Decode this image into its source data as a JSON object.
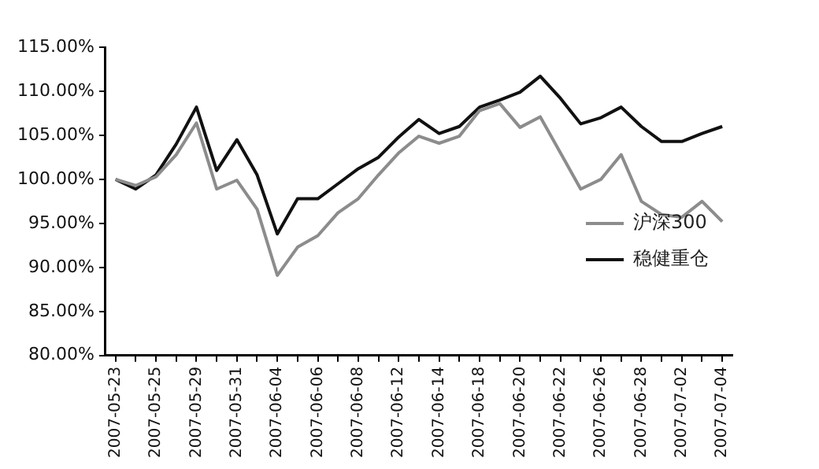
{
  "chart_data": {
    "type": "line",
    "categories": [
      "2007-05-23",
      null,
      "2007-05-25",
      null,
      "2007-05-29",
      null,
      "2007-05-31",
      null,
      "2007-06-04",
      null,
      "2007-06-06",
      null,
      "2007-06-08",
      null,
      "2007-06-12",
      null,
      "2007-06-14",
      null,
      "2007-06-18",
      null,
      "2007-06-20",
      null,
      "2007-06-22",
      null,
      "2007-06-26",
      null,
      "2007-06-28",
      null,
      "2007-07-02",
      null,
      "2007-07-04"
    ],
    "series": [
      {
        "name": "沪深300",
        "color": "#8c8c8c",
        "values": [
          100,
          99.3,
          100.3,
          102.8,
          106.4,
          98.9,
          99.9,
          96.6,
          89.1,
          92.3,
          93.6,
          96.2,
          97.8,
          100.5,
          103,
          104.9,
          104.1,
          104.9,
          107.8,
          108.6,
          105.9,
          107.1,
          103,
          98.9,
          100,
          102.8,
          97.5,
          96,
          95.7,
          97.5,
          95.2
        ]
      },
      {
        "name": "稳健重仓",
        "color": "#111111",
        "values": [
          100,
          98.9,
          100.5,
          104,
          108.2,
          101,
          104.5,
          100.5,
          93.8,
          97.8,
          97.8,
          99.5,
          101.2,
          102.5,
          104.8,
          106.8,
          105.2,
          106,
          108.2,
          109,
          109.9,
          111.7,
          109.2,
          106.3,
          107,
          108.2,
          106,
          104.3,
          104.3,
          105.2,
          106
        ]
      }
    ],
    "ylim": [
      80,
      115
    ],
    "yticks": [
      {
        "value": 80,
        "label": "80.00%"
      },
      {
        "value": 85,
        "label": "85.00%"
      },
      {
        "value": 90,
        "label": "90.00%"
      },
      {
        "value": 95,
        "label": "95.00%"
      },
      {
        "value": 100,
        "label": "100.00%"
      },
      {
        "value": 105,
        "label": "105.00%"
      },
      {
        "value": 110,
        "label": "110.00%"
      },
      {
        "value": 115,
        "label": "115.00%"
      }
    ],
    "grid": false,
    "legend": "bottom right",
    "marker": "none",
    "line_style": "solid"
  }
}
